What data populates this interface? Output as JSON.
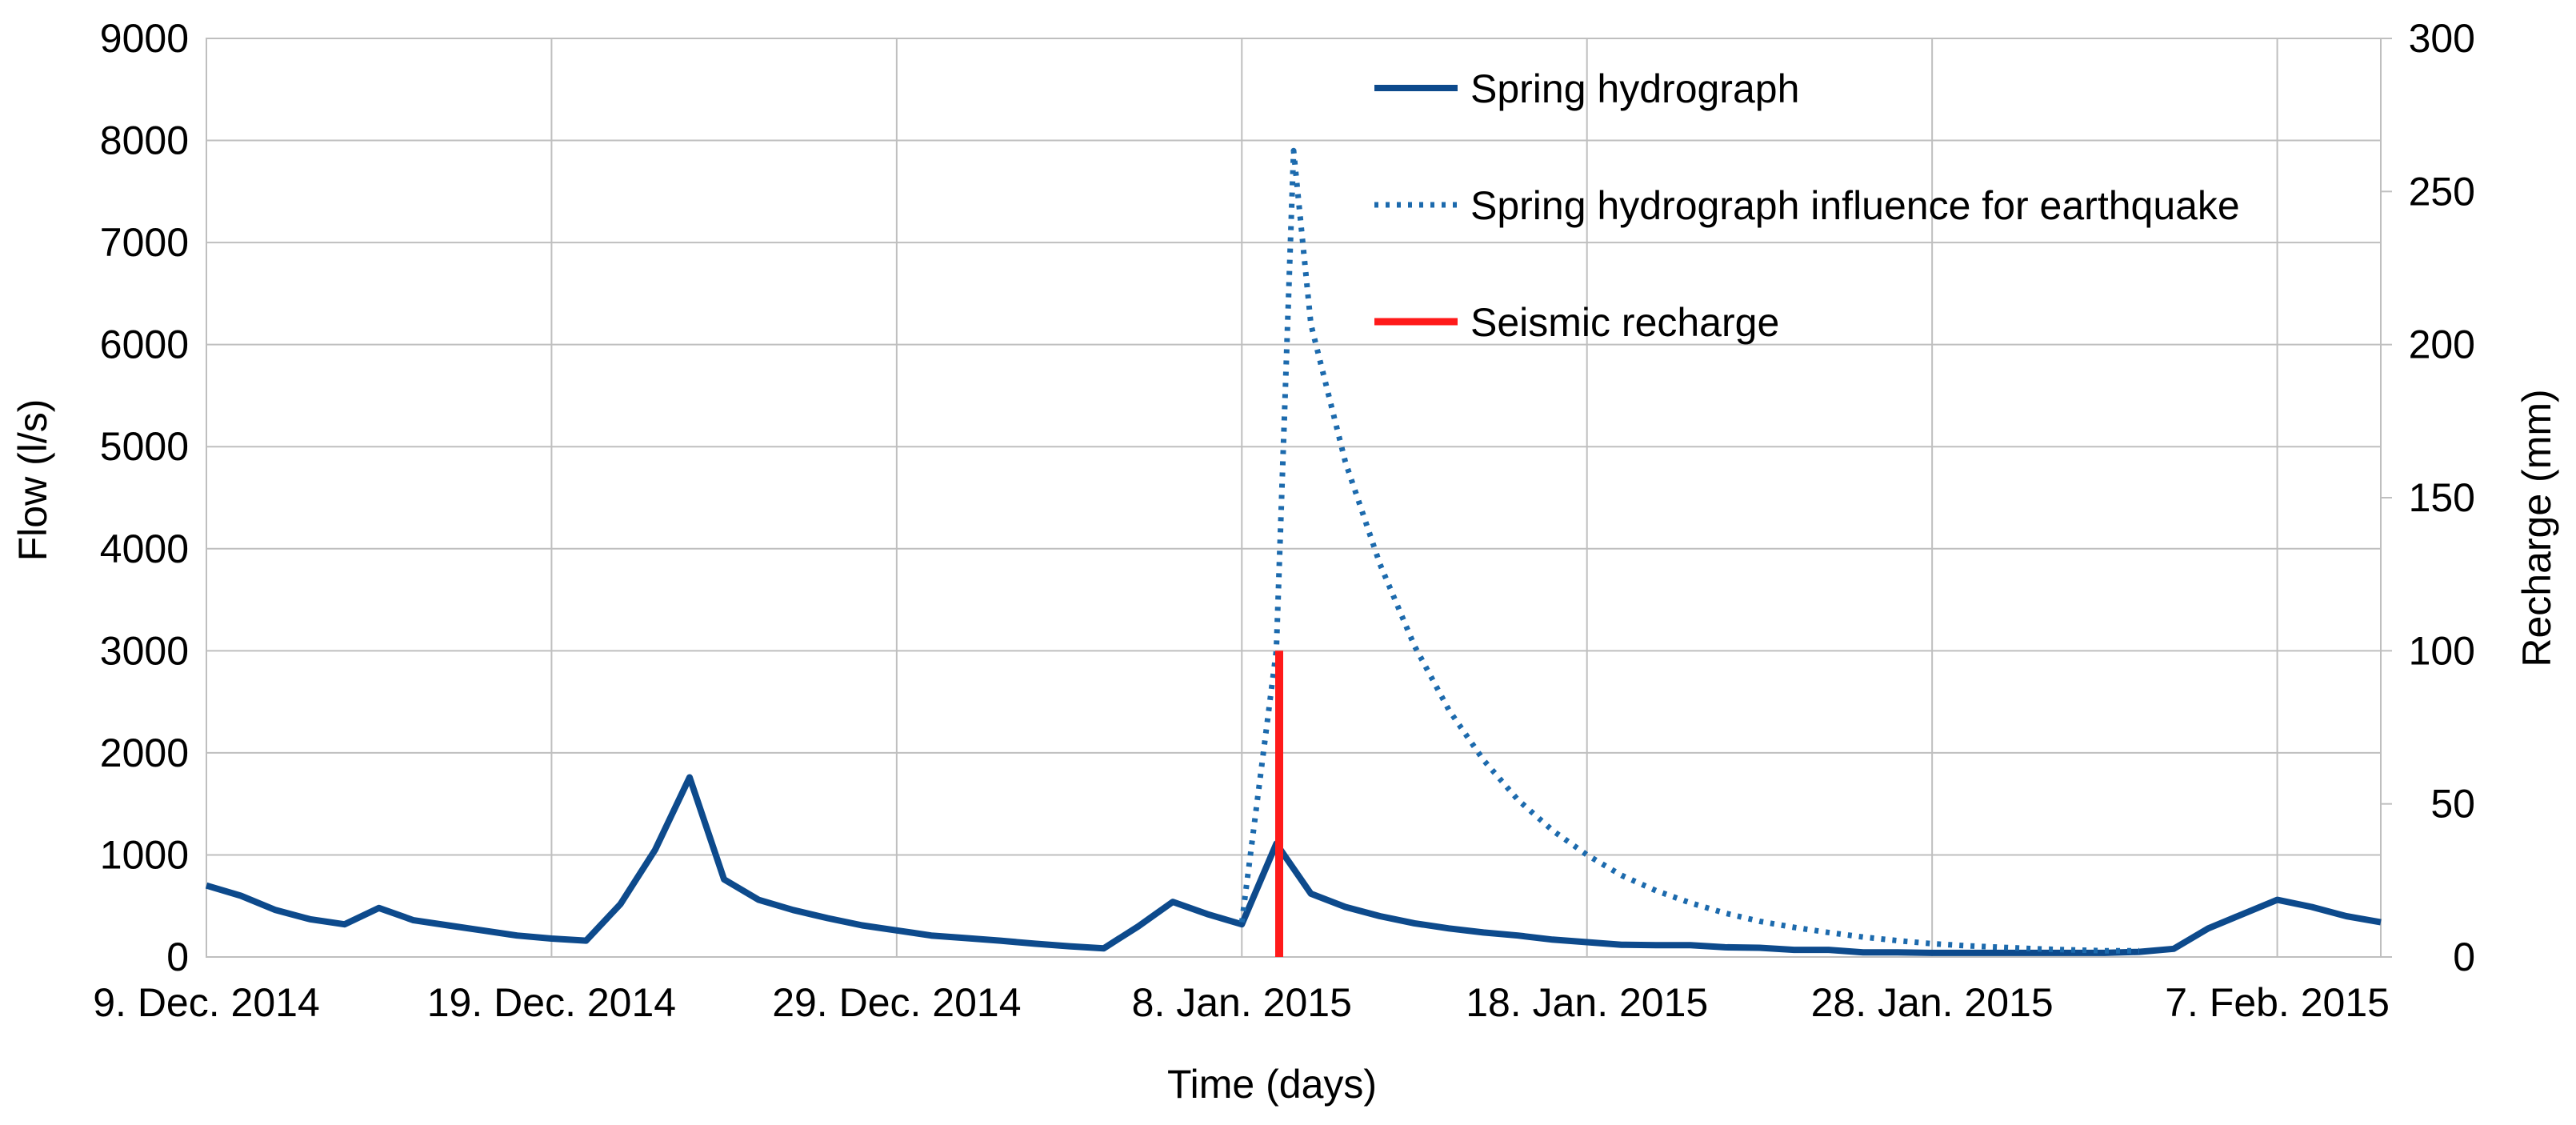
{
  "chart_data": {
    "type": "line",
    "title": "",
    "xlabel": "Time (days)",
    "ylabel": "Flow (l/s)",
    "y2label": "Recharge (mm)",
    "xlim": [
      "2014-12-09",
      "2015-02-10"
    ],
    "ylim": [
      0,
      9000
    ],
    "y2lim": [
      0,
      300
    ],
    "grid": true,
    "legend_position": "top-right",
    "x_tick_labels": [
      "9. Dec. 2014",
      "19. Dec. 2014",
      "29. Dec. 2014",
      "8. Jan. 2015",
      "18. Jan. 2015",
      "28. Jan. 2015",
      "7. Feb. 2015"
    ],
    "x_tick_dates": [
      "2014-12-09",
      "2014-12-19",
      "2014-12-29",
      "2015-01-08",
      "2015-01-18",
      "2015-01-28",
      "2015-02-07"
    ],
    "y_ticks": [
      0,
      1000,
      2000,
      3000,
      4000,
      5000,
      6000,
      7000,
      8000,
      9000
    ],
    "y2_ticks": [
      0,
      50,
      100,
      150,
      200,
      250,
      300
    ],
    "series": [
      {
        "name": "Spring hydrograph",
        "axis": "left",
        "color": "#0d4a8c",
        "style": "solid",
        "x": [
          "2014-12-09",
          "2014-12-10",
          "2014-12-11",
          "2014-12-12",
          "2014-12-13",
          "2014-12-14",
          "2014-12-15",
          "2014-12-16",
          "2014-12-17",
          "2014-12-18",
          "2014-12-19",
          "2014-12-20",
          "2014-12-21",
          "2014-12-22",
          "2014-12-23",
          "2014-12-24",
          "2014-12-25",
          "2014-12-26",
          "2014-12-27",
          "2014-12-28",
          "2014-12-29",
          "2014-12-30",
          "2014-12-31",
          "2015-01-01",
          "2015-01-02",
          "2015-01-03",
          "2015-01-04",
          "2015-01-05",
          "2015-01-06",
          "2015-01-07",
          "2015-01-08",
          "2015-01-09",
          "2015-01-10",
          "2015-01-11",
          "2015-01-12",
          "2015-01-13",
          "2015-01-14",
          "2015-01-15",
          "2015-01-16",
          "2015-01-17",
          "2015-01-18",
          "2015-01-19",
          "2015-01-20",
          "2015-01-21",
          "2015-01-22",
          "2015-01-23",
          "2015-01-24",
          "2015-01-25",
          "2015-01-26",
          "2015-01-27",
          "2015-01-28",
          "2015-01-29",
          "2015-01-30",
          "2015-01-31",
          "2015-02-01",
          "2015-02-02",
          "2015-02-03",
          "2015-02-04",
          "2015-02-05",
          "2015-02-06",
          "2015-02-07",
          "2015-02-08",
          "2015-02-09",
          "2015-02-10"
        ],
        "y": [
          700,
          600,
          460,
          370,
          320,
          480,
          360,
          310,
          260,
          210,
          180,
          160,
          520,
          1050,
          1760,
          760,
          560,
          460,
          380,
          310,
          260,
          210,
          185,
          160,
          130,
          105,
          85,
          300,
          540,
          420,
          320,
          1110,
          620,
          490,
          400,
          330,
          280,
          240,
          210,
          170,
          145,
          120,
          115,
          115,
          95,
          90,
          70,
          70,
          45,
          45,
          40,
          40,
          40,
          40,
          40,
          40,
          50,
          80,
          280,
          420,
          560,
          490,
          400,
          340
        ]
      },
      {
        "name": "Spring hydrograph influence for earthquake",
        "axis": "left",
        "color": "#1c6aad",
        "style": "dotted",
        "x": [
          "2015-01-08",
          "2015-01-09",
          "2015-01-09T12:00",
          "2015-01-10",
          "2015-01-11",
          "2015-01-12",
          "2015-01-13",
          "2015-01-14",
          "2015-01-15",
          "2015-01-16",
          "2015-01-17",
          "2015-01-18",
          "2015-01-19",
          "2015-01-20",
          "2015-01-21",
          "2015-01-22",
          "2015-01-23",
          "2015-01-24",
          "2015-01-25",
          "2015-01-26",
          "2015-01-27",
          "2015-01-28",
          "2015-01-29",
          "2015-01-30",
          "2015-01-31",
          "2015-02-01",
          "2015-02-02",
          "2015-02-03"
        ],
        "y": [
          340,
          3000,
          7900,
          6200,
          4850,
          3850,
          3050,
          2420,
          1930,
          1540,
          1240,
          1000,
          800,
          650,
          530,
          430,
          350,
          290,
          240,
          195,
          160,
          130,
          110,
          95,
          80,
          70,
          60,
          60
        ]
      },
      {
        "name": "Seismic recharge",
        "axis": "right",
        "color": "#ff1a1a",
        "style": "solid",
        "x": [
          "2015-01-09T02:00",
          "2015-01-09T02:00"
        ],
        "y": [
          0,
          100
        ]
      }
    ]
  }
}
